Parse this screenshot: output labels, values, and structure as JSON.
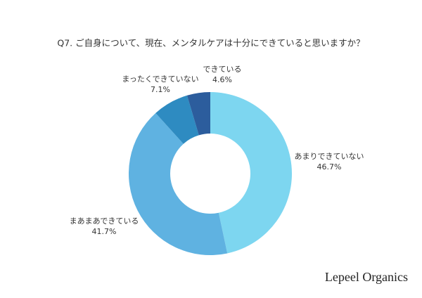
{
  "chart_data": {
    "type": "donut",
    "title": "Q7. ご自身について、現在、メンタルケアは十分にできていると思いますか？",
    "categories": [
      "あまりできていない",
      "まあまあできている",
      "まったくできていない",
      "できている"
    ],
    "values": [
      46.7,
      41.7,
      7.1,
      4.6
    ],
    "value_labels": [
      "46.7%",
      "41.7%",
      "7.1%",
      "4.6%"
    ],
    "colors": [
      "#7dd6f0",
      "#5fb2e1",
      "#2e8bc1",
      "#2c5d9d"
    ],
    "brand": "Lepeel Organics"
  }
}
